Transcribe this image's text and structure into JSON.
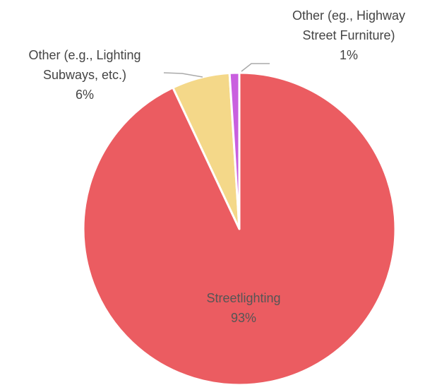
{
  "chart_data": {
    "type": "pie",
    "categories": [
      "Streetlighting",
      "Other (e.g., Lighting Subways, etc.)",
      "Other (eg., Highway Street Furniture)"
    ],
    "values": [
      93,
      6,
      1
    ],
    "value_labels": [
      "93%",
      "6%",
      "1%"
    ],
    "colors": [
      "#eb5c61",
      "#f4d889",
      "#c95fdf"
    ]
  }
}
